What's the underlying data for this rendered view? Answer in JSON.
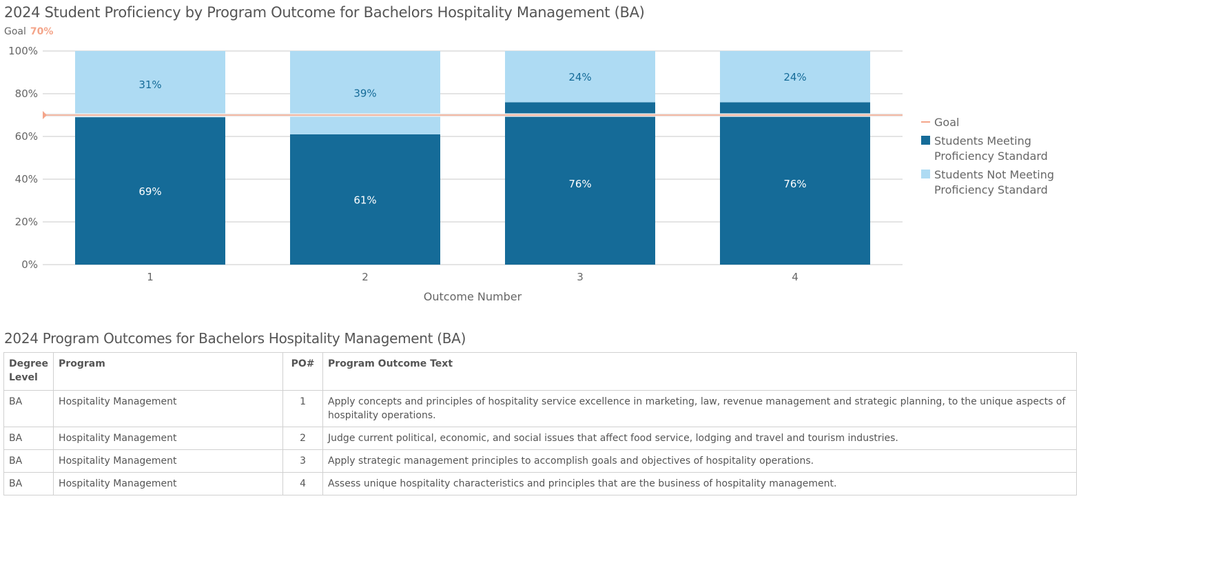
{
  "title": "2024 Student Proficiency by Program Outcome for Bachelors Hospitality Management (BA)",
  "goal_label": "Goal",
  "goal_value": "70%",
  "chart_data": {
    "type": "bar",
    "stacked": true,
    "title": "2024 Student Proficiency by Program Outcome for Bachelors Hospitality Management (BA)",
    "xlabel": "Outcome Number",
    "ylabel": "",
    "categories": [
      "1",
      "2",
      "3",
      "4"
    ],
    "ylim": [
      0,
      100
    ],
    "yticks": [
      "0%",
      "20%",
      "40%",
      "60%",
      "80%",
      "100%"
    ],
    "grid": true,
    "legend_position": "right",
    "goal": 70,
    "series": [
      {
        "name": "Students Meeting Proficiency Standard",
        "values": [
          69,
          61,
          76,
          76
        ],
        "labels": [
          "69%",
          "61%",
          "76%",
          "76%"
        ],
        "color": "#156b98"
      },
      {
        "name": "Students Not Meeting Proficiency Standard",
        "values": [
          31,
          39,
          24,
          24
        ],
        "labels": [
          "31%",
          "39%",
          "24%",
          "24%"
        ],
        "color": "#aedbf3"
      }
    ],
    "legend": {
      "goal": "Goal",
      "meeting": [
        "Students Meeting",
        "Proficiency Standard"
      ],
      "not_meeting": [
        "Students Not Meeting",
        "Proficiency Standard"
      ]
    },
    "goal_color": "#f4a58a"
  },
  "table": {
    "title": "2024 Program Outcomes for Bachelors Hospitality Management (BA)",
    "headers": [
      "Degree Level",
      "Program",
      "PO#",
      "Program Outcome Text"
    ],
    "rows": [
      [
        "BA",
        "Hospitality Management",
        "1",
        "Apply concepts and principles of hospitality service excellence in marketing, law, revenue management and strategic planning, to the unique aspects of hospitality operations."
      ],
      [
        "BA",
        "Hospitality Management",
        "2",
        "Judge current political, economic, and social issues that affect food service, lodging and travel and tourism industries."
      ],
      [
        "BA",
        "Hospitality Management",
        "3",
        "Apply strategic management principles to accomplish goals and objectives of hospitality operations."
      ],
      [
        "BA",
        "Hospitality Management",
        "4",
        "Assess unique hospitality characteristics and principles that are the business of hospitality management."
      ]
    ]
  }
}
